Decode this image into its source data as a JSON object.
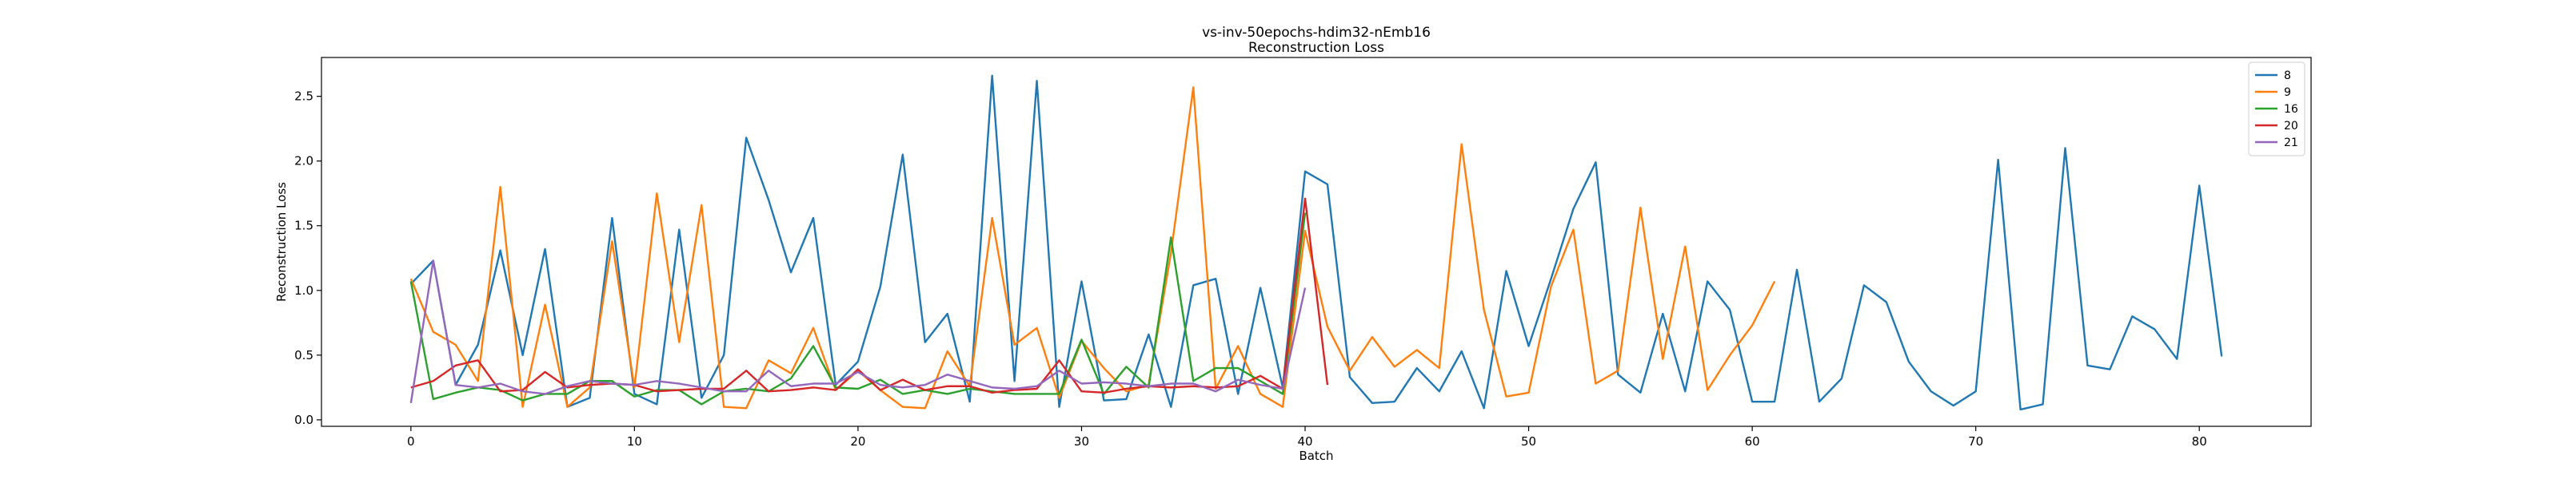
{
  "chart_data": {
    "type": "line",
    "title": "vs-inv-50epochs-hdim32-nEmb16",
    "subtitle": "Reconstruction Loss",
    "xlabel": "Batch",
    "ylabel": "Reconstruction Loss",
    "xlim": [
      -4,
      85
    ],
    "ylim": [
      -0.05,
      2.8
    ],
    "xticks": [
      "0",
      "10",
      "20",
      "30",
      "40",
      "50",
      "60",
      "70",
      "80"
    ],
    "yticks": [
      "0.0",
      "0.5",
      "1.0",
      "1.5",
      "2.0",
      "2.5"
    ],
    "grid": false,
    "legend_position": "top-right",
    "series": [
      {
        "name": "8",
        "color": "#1f77b4",
        "values": [
          1.05,
          1.23,
          0.27,
          0.58,
          1.31,
          0.5,
          1.32,
          0.1,
          0.17,
          1.56,
          0.2,
          0.12,
          1.47,
          0.17,
          0.5,
          2.18,
          1.7,
          1.14,
          1.56,
          0.27,
          0.45,
          1.03,
          2.05,
          0.6,
          0.82,
          0.14,
          2.66,
          0.3,
          2.62,
          0.1,
          1.07,
          0.15,
          0.16,
          0.66,
          0.1,
          1.04,
          1.09,
          0.2,
          1.02,
          0.25,
          1.92,
          1.82,
          0.33,
          0.13,
          0.14,
          0.4,
          0.22,
          0.53,
          0.09,
          1.15,
          0.57,
          1.09,
          1.63,
          1.99,
          0.35,
          0.21,
          0.82,
          0.22,
          1.07,
          0.85,
          0.14,
          0.14,
          1.16,
          0.14,
          0.32,
          1.04,
          0.91,
          0.45,
          0.22,
          0.11,
          0.22,
          2.01,
          0.08,
          0.12,
          2.1,
          0.42,
          0.39,
          0.8,
          0.7,
          0.47,
          1.81,
          0.49
        ]
      },
      {
        "name": "9",
        "color": "#ff7f0e",
        "values": [
          1.09,
          0.68,
          0.58,
          0.3,
          1.8,
          0.1,
          0.89,
          0.1,
          0.25,
          1.38,
          0.25,
          1.75,
          0.6,
          1.66,
          0.1,
          0.09,
          0.46,
          0.36,
          0.71,
          0.23,
          0.38,
          0.23,
          0.1,
          0.09,
          0.53,
          0.26,
          1.56,
          0.58,
          0.71,
          0.17,
          0.61,
          0.4,
          0.22,
          0.27,
          1.29,
          2.57,
          0.24,
          0.57,
          0.2,
          0.1,
          1.46,
          0.72,
          0.38,
          0.64,
          0.41,
          0.54,
          0.4,
          2.13,
          0.85,
          0.18,
          0.21,
          1.03,
          1.47,
          0.28,
          0.38,
          1.64,
          0.47,
          1.34,
          0.23,
          0.5,
          0.73,
          1.07
        ]
      },
      {
        "name": "16",
        "color": "#2ca02c",
        "values": [
          1.07,
          0.16,
          0.21,
          0.25,
          0.23,
          0.15,
          0.2,
          0.2,
          0.3,
          0.3,
          0.18,
          0.23,
          0.23,
          0.12,
          0.22,
          0.24,
          0.22,
          0.32,
          0.57,
          0.25,
          0.24,
          0.31,
          0.2,
          0.23,
          0.2,
          0.24,
          0.22,
          0.2,
          0.2,
          0.2,
          0.62,
          0.2,
          0.41,
          0.25,
          1.41,
          0.3,
          0.4,
          0.4,
          0.3,
          0.2,
          1.6
        ]
      },
      {
        "name": "20",
        "color": "#d62728",
        "values": [
          0.25,
          0.3,
          0.42,
          0.46,
          0.22,
          0.23,
          0.37,
          0.25,
          0.27,
          0.28,
          0.27,
          0.22,
          0.23,
          0.24,
          0.24,
          0.38,
          0.22,
          0.23,
          0.25,
          0.23,
          0.39,
          0.23,
          0.31,
          0.23,
          0.26,
          0.26,
          0.21,
          0.23,
          0.24,
          0.46,
          0.22,
          0.21,
          0.24,
          0.26,
          0.25,
          0.26,
          0.25,
          0.26,
          0.34,
          0.24,
          1.71,
          0.27
        ]
      },
      {
        "name": "21",
        "color": "#9467bd",
        "values": [
          0.13,
          1.23,
          0.27,
          0.25,
          0.28,
          0.22,
          0.2,
          0.26,
          0.3,
          0.28,
          0.27,
          0.3,
          0.28,
          0.25,
          0.22,
          0.22,
          0.38,
          0.26,
          0.28,
          0.28,
          0.37,
          0.27,
          0.25,
          0.27,
          0.35,
          0.3,
          0.25,
          0.24,
          0.26,
          0.38,
          0.28,
          0.29,
          0.28,
          0.26,
          0.28,
          0.28,
          0.22,
          0.31,
          0.27,
          0.24,
          1.02
        ]
      }
    ]
  }
}
